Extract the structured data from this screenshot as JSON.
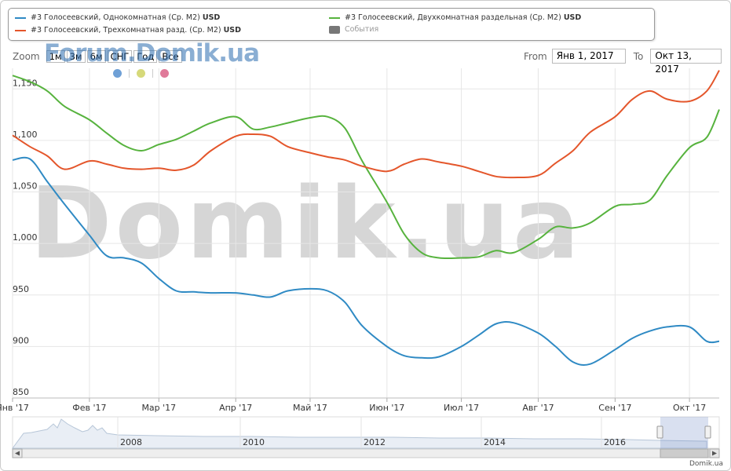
{
  "legend": {
    "items": [
      {
        "label": "#3 Голосеевский, Однокомнатная (Ср. М2)",
        "unit": "USD",
        "color": "#2f8ac4"
      },
      {
        "label": "#3 Голосеевский, Двухкомнатная раздельная (Ср. М2)",
        "unit": "USD",
        "color": "#57b33e"
      },
      {
        "label": "#3 Голосеевский, Трехкомнатная разд. (Ср. М2)",
        "unit": "USD",
        "color": "#e4562b"
      },
      {
        "label": "События",
        "unit": "",
        "color": "#777777"
      }
    ]
  },
  "zoom": {
    "label": "Zoom",
    "buttons": [
      "1м",
      "3м",
      "6м",
      "СНГ",
      "Год",
      "Все"
    ]
  },
  "watermark_small": "Forum.Domik.ua",
  "watermark_big": "Domik.ua",
  "event_dots": [
    {
      "color": "#6fa0d6"
    },
    {
      "color": "#d6d97a"
    },
    {
      "color": "#e07a9a"
    }
  ],
  "range": {
    "from_label": "From",
    "from_value": "Янв 1, 2017",
    "to_label": "To",
    "to_value": "Окт 13, 2017"
  },
  "chart_data": {
    "type": "line",
    "ylim": [
      850,
      1170
    ],
    "y_ticks": [
      850,
      900,
      950,
      1000,
      1050,
      1100,
      1150
    ],
    "y_tick_labels": [
      "850",
      "900",
      "950",
      "1,000",
      "1,050",
      "1,100",
      "1,150"
    ],
    "x_tick_labels": [
      "Янв '17",
      "Фев '17",
      "Мар '17",
      "Апр '17",
      "Май '17",
      "Июн '17",
      "Июл '17",
      "Авг '17",
      "Сен '17",
      "Окт '17"
    ],
    "x": [
      "2017-01-01",
      "2017-01-08",
      "2017-01-15",
      "2017-01-22",
      "2017-02-01",
      "2017-02-08",
      "2017-02-15",
      "2017-02-22",
      "2017-03-01",
      "2017-03-08",
      "2017-03-15",
      "2017-03-22",
      "2017-04-01",
      "2017-04-08",
      "2017-04-15",
      "2017-04-22",
      "2017-05-01",
      "2017-05-08",
      "2017-05-15",
      "2017-05-22",
      "2017-06-01",
      "2017-06-08",
      "2017-06-15",
      "2017-06-22",
      "2017-07-01",
      "2017-07-08",
      "2017-07-15",
      "2017-07-22",
      "2017-08-01",
      "2017-08-08",
      "2017-08-15",
      "2017-08-22",
      "2017-09-01",
      "2017-09-08",
      "2017-09-15",
      "2017-09-22",
      "2017-10-01",
      "2017-10-08",
      "2017-10-13"
    ],
    "series": [
      {
        "name": "#3 Голосеевский, Однокомнатная (Ср. М2)",
        "color": "#2f8ac4",
        "values": [
          1081,
          1082,
          1060,
          1038,
          1008,
          988,
          986,
          981,
          966,
          954,
          953,
          952,
          952,
          950,
          948,
          954,
          956,
          954,
          943,
          920,
          900,
          891,
          889,
          890,
          900,
          911,
          922,
          923,
          913,
          900,
          885,
          883,
          897,
          908,
          915,
          919,
          919,
          905,
          905
        ]
      },
      {
        "name": "#3 Голосеевский, Двухкомнатная раздельная (Ср. М2)",
        "color": "#57b33e",
        "values": [
          1163,
          1157,
          1148,
          1133,
          1120,
          1107,
          1095,
          1090,
          1096,
          1101,
          1109,
          1117,
          1123,
          1111,
          1113,
          1117,
          1122,
          1123,
          1112,
          1080,
          1040,
          1009,
          991,
          986,
          986,
          987,
          993,
          991,
          1004,
          1016,
          1015,
          1020,
          1036,
          1038,
          1042,
          1066,
          1093,
          1103,
          1130
        ]
      },
      {
        "name": "#3 Голосеевский, Трехкомнатная разд. (Ср. М2)",
        "color": "#e4562b",
        "values": [
          1105,
          1094,
          1085,
          1072,
          1080,
          1077,
          1073,
          1072,
          1073,
          1071,
          1076,
          1090,
          1104,
          1106,
          1104,
          1094,
          1088,
          1084,
          1081,
          1075,
          1070,
          1077,
          1082,
          1079,
          1075,
          1070,
          1065,
          1064,
          1066,
          1078,
          1090,
          1108,
          1123,
          1140,
          1148,
          1140,
          1138,
          1148,
          1168
        ]
      }
    ]
  },
  "navigator": {
    "year_labels": [
      "2008",
      "2010",
      "2012",
      "2014",
      "2016"
    ]
  },
  "footer": "Domik.ua"
}
